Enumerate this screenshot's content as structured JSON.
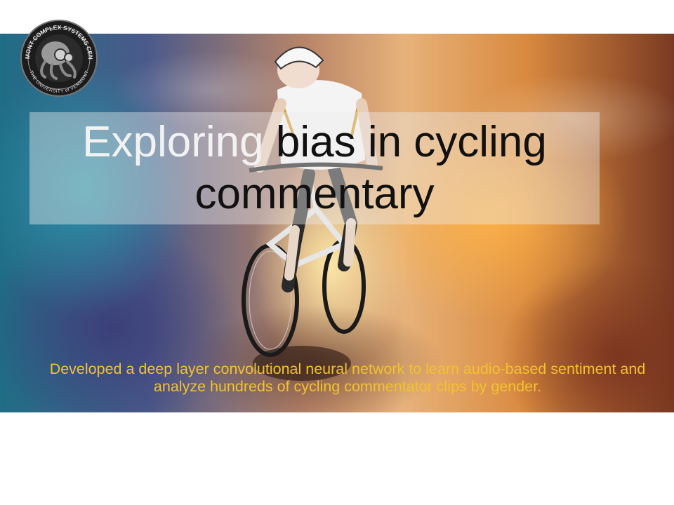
{
  "slide": {
    "title_part1": "Exploring",
    "title_part2": " bias in cycling commentary",
    "subtitle": "Developed a deep layer convolutional neural network to learn audio-based sentiment and analyze hundreds of cycling commentator clips by gender.",
    "logo": {
      "top_text": "VERMONT COMPLEX SYSTEMS CENTER",
      "bottom_text": "THE UNIVERSITY of VERMONT",
      "icon": "robot-octopus-emblem"
    },
    "hero_image": "cyclist-photo",
    "colors": {
      "title": "#111111",
      "title_first_word": "#f2f2f2",
      "subtitle": "#f2c230",
      "title_box": "rgba(235,235,235,0.42)"
    }
  }
}
